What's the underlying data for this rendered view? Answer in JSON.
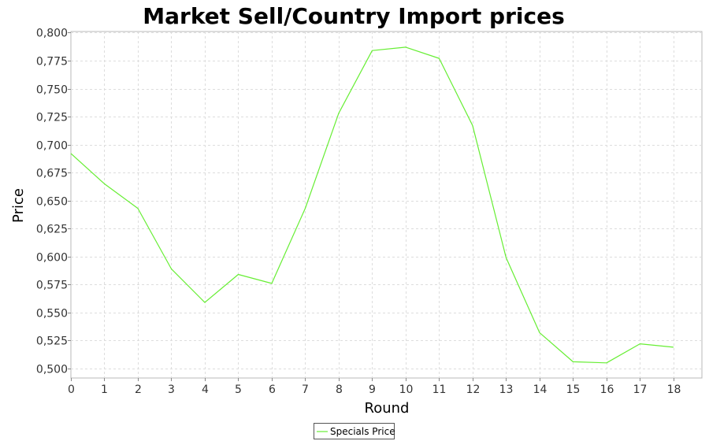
{
  "chart_data": {
    "type": "line",
    "title": "Market Sell/Country Import prices",
    "xlabel": "Round",
    "ylabel": "Price",
    "x": [
      0,
      1,
      2,
      3,
      4,
      5,
      6,
      7,
      8,
      9,
      10,
      11,
      12,
      13,
      14,
      15,
      16,
      17,
      18
    ],
    "xlim": [
      0,
      18.85
    ],
    "ylim": [
      0.4915,
      0.801
    ],
    "x_ticks": [
      0,
      1,
      2,
      3,
      4,
      5,
      6,
      7,
      8,
      9,
      10,
      11,
      12,
      13,
      14,
      15,
      16,
      17,
      18
    ],
    "y_ticks": [
      0.5,
      0.525,
      0.55,
      0.575,
      0.6,
      0.625,
      0.65,
      0.675,
      0.7,
      0.725,
      0.75,
      0.775,
      0.8
    ],
    "y_tick_labels": [
      "0,500",
      "0,525",
      "0,550",
      "0,575",
      "0,600",
      "0,625",
      "0,650",
      "0,675",
      "0,700",
      "0,725",
      "0,750",
      "0,775",
      "0,800"
    ],
    "grid": true,
    "legend_position": "bottom-center",
    "series": [
      {
        "name": "Specials Price",
        "color": "#66ee33",
        "values": [
          0.692,
          0.665,
          0.643,
          0.589,
          0.559,
          0.584,
          0.576,
          0.643,
          0.728,
          0.784,
          0.787,
          0.777,
          0.717,
          0.599,
          0.532,
          0.506,
          0.505,
          0.522,
          0.519
        ]
      }
    ]
  }
}
